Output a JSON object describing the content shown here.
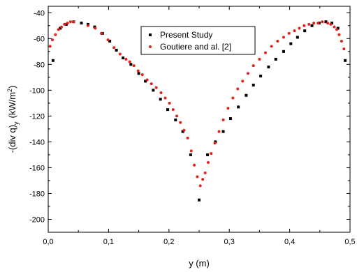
{
  "chart_data": {
    "type": "scatter",
    "xlabel": "y (m)",
    "ylabel": "-(div q)",
    "ylabel_subscript": "y",
    "ylabel_unit_prefix": "(kW/m",
    "ylabel_unit_exp": "2",
    "ylabel_unit_suffix": ")",
    "xlim": [
      0.0,
      0.5
    ],
    "ylim": [
      -210,
      -35
    ],
    "x_ticks": [
      0.0,
      0.1,
      0.2,
      0.3,
      0.4,
      0.5
    ],
    "x_tick_labels": [
      "0,0",
      "0,1",
      "0,2",
      "0,3",
      "0,4",
      "0,5"
    ],
    "y_ticks": [
      -40,
      -60,
      -80,
      -100,
      -120,
      -140,
      -160,
      -180,
      -200
    ],
    "y_tick_labels": [
      "-40",
      "-60",
      "-80",
      "-100",
      "-120",
      "-140",
      "-160",
      "-180",
      "-200"
    ],
    "grid": false,
    "legend_position": "top-center",
    "series": [
      {
        "name": "Present Study",
        "color": "#000000",
        "marker": "square",
        "x": [
          0.008,
          0.02,
          0.03,
          0.042,
          0.055,
          0.066,
          0.077,
          0.09,
          0.102,
          0.113,
          0.124,
          0.137,
          0.15,
          0.161,
          0.174,
          0.186,
          0.198,
          0.211,
          0.223,
          0.236,
          0.25,
          0.264,
          0.277,
          0.29,
          0.302,
          0.315,
          0.328,
          0.34,
          0.352,
          0.365,
          0.377,
          0.39,
          0.402,
          0.413,
          0.425,
          0.437,
          0.449,
          0.46,
          0.47,
          0.48,
          0.492
        ],
        "y": [
          -77,
          -52,
          -49,
          -47,
          -48,
          -49,
          -51,
          -56,
          -62,
          -69,
          -75,
          -80,
          -87,
          -93,
          -100,
          -107,
          -115,
          -123,
          -132,
          -150,
          -185,
          -150,
          -140,
          -132,
          -122,
          -113,
          -104,
          -96,
          -89,
          -82,
          -76,
          -70,
          -64,
          -59,
          -54,
          -50,
          -48,
          -47,
          -48,
          -52,
          -77
        ]
      },
      {
        "name": "Goutiere and al. [2]",
        "color": "#e3211c",
        "marker": "circle",
        "x": [
          0.003,
          0.007,
          0.012,
          0.017,
          0.022,
          0.027,
          0.032,
          0.037,
          0.042,
          0.066,
          0.078,
          0.088,
          0.099,
          0.109,
          0.119,
          0.129,
          0.135,
          0.142,
          0.149,
          0.156,
          0.164,
          0.171,
          0.179,
          0.187,
          0.194,
          0.201,
          0.207,
          0.213,
          0.219,
          0.225,
          0.231,
          0.237,
          0.242,
          0.247,
          0.252,
          0.256,
          0.26,
          0.265,
          0.27,
          0.276,
          0.283,
          0.29,
          0.298,
          0.306,
          0.314,
          0.322,
          0.331,
          0.34,
          0.35,
          0.36,
          0.37,
          0.38,
          0.39,
          0.399,
          0.408,
          0.416,
          0.424,
          0.432,
          0.44,
          0.447,
          0.454,
          0.463,
          0.468,
          0.474,
          0.478,
          0.482,
          0.486,
          0.49
        ],
        "y": [
          -66,
          -61,
          -57,
          -53,
          -51,
          -49,
          -48,
          -47,
          -47,
          -50,
          -52,
          -56,
          -61,
          -67,
          -72,
          -76,
          -78,
          -81,
          -85,
          -88,
          -92,
          -95,
          -98,
          -102,
          -106,
          -110,
          -115,
          -120,
          -125,
          -131,
          -137,
          -147,
          -158,
          -167,
          -174,
          -169,
          -164,
          -156,
          -149,
          -141,
          -132,
          -123,
          -114,
          -106,
          -99,
          -93,
          -87,
          -81,
          -76,
          -71,
          -66,
          -62,
          -59,
          -56,
          -54,
          -52,
          -50,
          -49,
          -48,
          -48,
          -47,
          -48,
          -49,
          -51,
          -53,
          -57,
          -62,
          -68
        ]
      }
    ]
  }
}
